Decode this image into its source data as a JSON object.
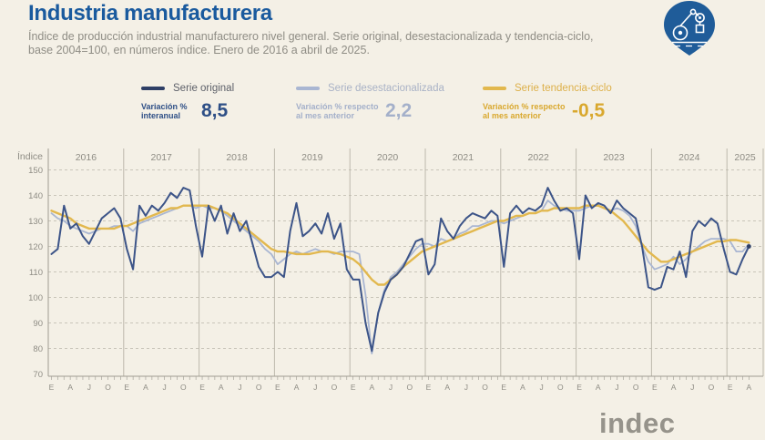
{
  "header": {
    "title": "Industria manufacturera",
    "subtitle_line1": "Índice de producción industrial manufacturero nivel general. Serie original, desestacionalizada y tendencia-ciclo,",
    "subtitle_line2": "base 2004=100, en números índice. Enero de 2016 a abril de 2025."
  },
  "colors": {
    "title": "#1a5a9e",
    "background": "#f4f0e6",
    "badge": "#1f5c99",
    "axis_text": "#8e8c84",
    "gridline": "#c9c5b9"
  },
  "icons": {
    "badge": "industrial-robot-arm-icon"
  },
  "legend": {
    "items": [
      {
        "label": "Serie original",
        "caption_line1": "Variación %",
        "caption_line2": "interanual",
        "value": "8,5",
        "swatch_color": "#2e3f66",
        "label_color": "#5d6069",
        "caption_color": "#2e4f86",
        "value_color": "#2e4f86"
      },
      {
        "label": "Serie desestacionalizada",
        "caption_line1": "Variación % respecto",
        "caption_line2": "al mes anterior",
        "value": "2,2",
        "swatch_color": "#a9b6d2",
        "label_color": "#a9b2c6",
        "caption_color": "#a4b0ca",
        "value_color": "#a4b0ca"
      },
      {
        "label": "Serie tendencia-ciclo",
        "caption_line1": "Variación % respecto",
        "caption_line2": "al mes anterior",
        "value": "-0,5",
        "swatch_color": "#e2b84e",
        "label_color": "#ddb04a",
        "caption_color": "#d9a82e",
        "value_color": "#d9a82e"
      }
    ]
  },
  "footer": {
    "logo_text": "indec"
  },
  "chart_data": {
    "type": "line",
    "ylabel": "Índice",
    "ylim": [
      70,
      150
    ],
    "yticks": [
      150,
      140,
      130,
      120,
      110,
      100,
      90,
      80,
      70
    ],
    "grid": "horizontal-dashed",
    "years": [
      "2016",
      "2017",
      "2018",
      "2019",
      "2020",
      "2021",
      "2022",
      "2023",
      "2024",
      "2025"
    ],
    "months_in_last_year": 4,
    "month_tick_letters": [
      "E",
      "A",
      "J",
      "O"
    ],
    "x_note": "monthly, Jan 2016 - Apr 2025",
    "series": [
      {
        "name": "Serie original",
        "color": "#3c5488",
        "values": [
          117,
          119,
          136,
          127,
          129,
          124,
          121,
          126,
          131,
          133,
          135,
          131,
          119,
          111,
          136,
          132,
          136,
          134,
          137,
          141,
          139,
          143,
          142,
          128,
          116,
          136,
          130,
          136,
          125,
          133,
          126,
          130,
          121,
          112,
          108,
          108,
          110,
          108,
          126,
          137,
          124,
          126,
          129,
          125,
          133,
          123,
          129,
          111,
          107,
          107,
          90,
          79,
          94,
          102,
          107,
          109,
          112,
          117,
          122,
          123,
          109,
          113,
          131,
          126,
          123,
          128,
          131,
          133,
          132,
          131,
          134,
          132,
          112,
          133,
          136,
          133,
          135,
          134,
          136,
          143,
          138,
          134,
          135,
          133,
          115,
          140,
          135,
          137,
          136,
          133,
          138,
          135,
          133,
          131,
          120,
          104,
          103,
          104,
          112,
          111,
          118,
          108,
          126,
          130,
          128,
          131,
          129,
          119,
          110,
          109,
          115,
          120
        ]
      },
      {
        "name": "Serie desestacionalizada",
        "color": "#a9b6d2",
        "values": [
          133,
          131,
          130,
          128,
          127,
          126,
          125,
          126,
          127,
          127,
          128,
          128,
          128,
          126,
          129,
          130,
          131,
          132,
          133,
          134,
          135,
          136,
          136,
          135,
          136,
          135,
          135,
          134,
          132,
          130,
          128,
          126,
          124,
          122,
          119,
          117,
          113,
          115,
          117,
          118,
          117,
          118,
          119,
          118,
          118,
          117,
          118,
          118,
          118,
          117,
          101,
          78,
          94,
          103,
          108,
          110,
          113,
          116,
          119,
          121,
          121,
          120,
          123,
          122,
          123,
          125,
          126,
          128,
          128,
          129,
          130,
          130,
          129,
          130,
          131,
          132,
          133,
          133,
          134,
          138,
          136,
          135,
          134,
          134,
          134,
          135,
          136,
          136,
          135,
          134,
          135,
          134,
          132,
          128,
          120,
          114,
          111,
          112,
          113,
          116,
          113,
          115,
          118,
          120,
          122,
          123,
          123,
          123,
          122,
          118,
          118,
          121
        ]
      },
      {
        "name": "Serie tendencia-ciclo",
        "color": "#e2b84e",
        "values": [
          134,
          133,
          132,
          131,
          129,
          128,
          127,
          127,
          127,
          127,
          127,
          128,
          128,
          129,
          130,
          131,
          132,
          133,
          134,
          135,
          135,
          136,
          136,
          136,
          136,
          136,
          135,
          134,
          133,
          131,
          129,
          127,
          125,
          123,
          121,
          119,
          118,
          118,
          117.5,
          117,
          117,
          117,
          117.5,
          118,
          118,
          117.5,
          117,
          116,
          115,
          113,
          110,
          107,
          105,
          105,
          107,
          109,
          112,
          114,
          116,
          118,
          119,
          120,
          121,
          122,
          123,
          124,
          125,
          126,
          127,
          128,
          129,
          130,
          130,
          131,
          132,
          132,
          133,
          133,
          134,
          134,
          135,
          135,
          135,
          135,
          135,
          136,
          136,
          136,
          135,
          134,
          132,
          130,
          127,
          124,
          121,
          118,
          116,
          114,
          114,
          115,
          116,
          117,
          118,
          119,
          120,
          121,
          122,
          122,
          122.5,
          122.5,
          122,
          121.5
        ]
      }
    ]
  }
}
